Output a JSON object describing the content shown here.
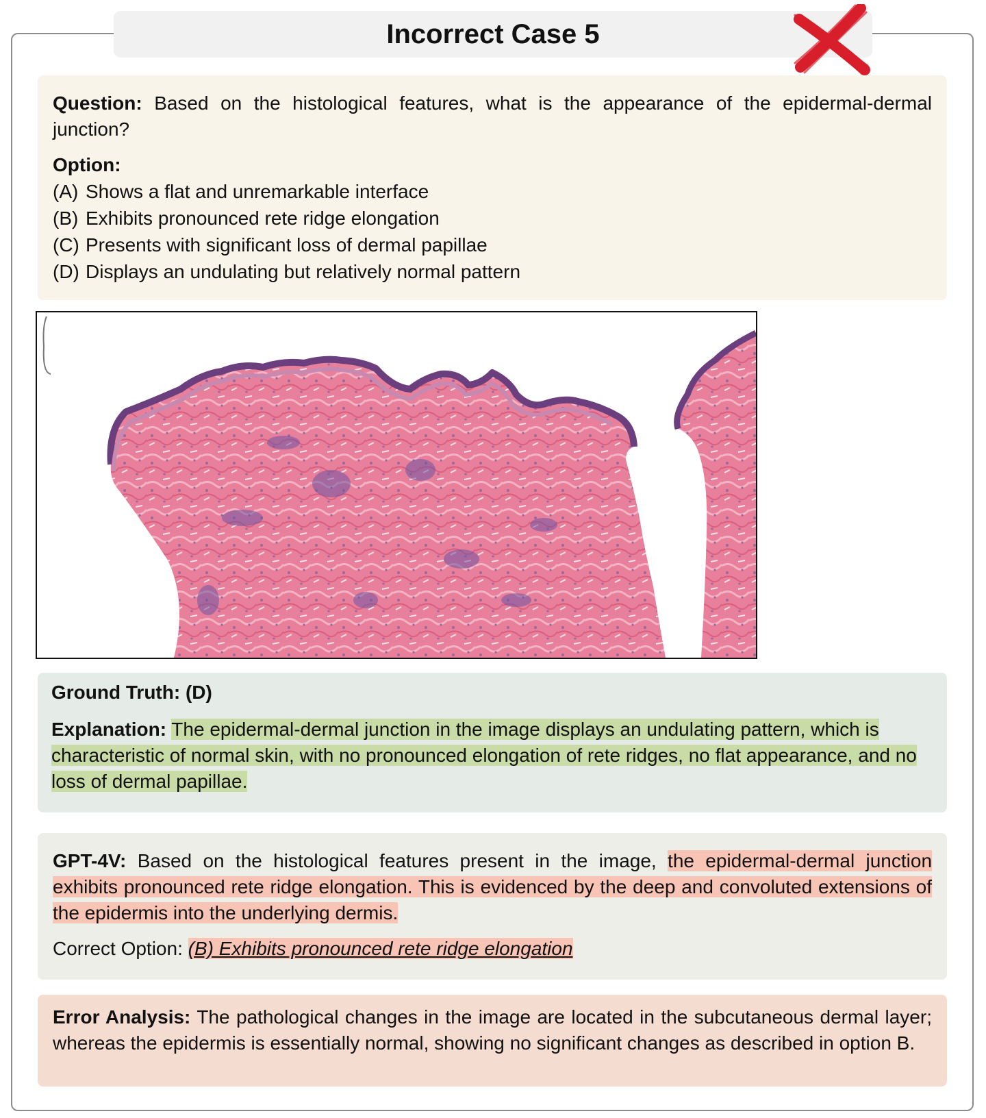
{
  "title": "Incorrect Case 5",
  "status_icon": "red-x-icon",
  "colors": {
    "question_bg": "#f8f4ea",
    "ground_truth_bg": "#e5ebe7",
    "gpt_bg": "#edeee8",
    "error_bg": "#f5dcd0",
    "highlight_green": "#c9dca8",
    "highlight_red": "#f7c4b5",
    "x_mark": "#d81e2a"
  },
  "question": {
    "label": "Question:",
    "text": "Based on the histological features, what is the appearance of the epidermal-dermal junction?",
    "options_label": "Option:",
    "options": [
      {
        "letter": "(A)",
        "text": "Shows a flat and unremarkable interface"
      },
      {
        "letter": "(B)",
        "text": "Exhibits pronounced rete ridge elongation"
      },
      {
        "letter": "(C)",
        "text": "Presents with significant loss of dermal papillae"
      },
      {
        "letter": "(D)",
        "text": "Displays an undulating but relatively normal pattern"
      }
    ]
  },
  "image": {
    "subject": "H&E stained skin histology section"
  },
  "ground_truth": {
    "text": "Ground Truth: (D)",
    "explanation_label": "Explanation:",
    "explanation": "The epidermal-dermal junction in the image displays an undulating pattern, which is characteristic of normal skin, with no pronounced elongation of rete ridges, no flat appearance, and no loss of dermal papillae."
  },
  "gpt": {
    "label": "GPT-4V:",
    "text_plain": "Based on the histological features present in the image,",
    "text_highlight": "the epidermal-dermal junction exhibits pronounced rete ridge elongation. This is evidenced by the deep and convoluted extensions of the epidermis into the underlying dermis.",
    "correct_label": "Correct Option:",
    "correct_value": "(B) Exhibits pronounced rete ridge elongation"
  },
  "error_analysis": {
    "label": "Error Analysis:",
    "text": "The pathological changes in the image are located in the subcutaneous dermal layer; whereas the epidermis is essentially normal, showing no significant changes as described in option B."
  }
}
